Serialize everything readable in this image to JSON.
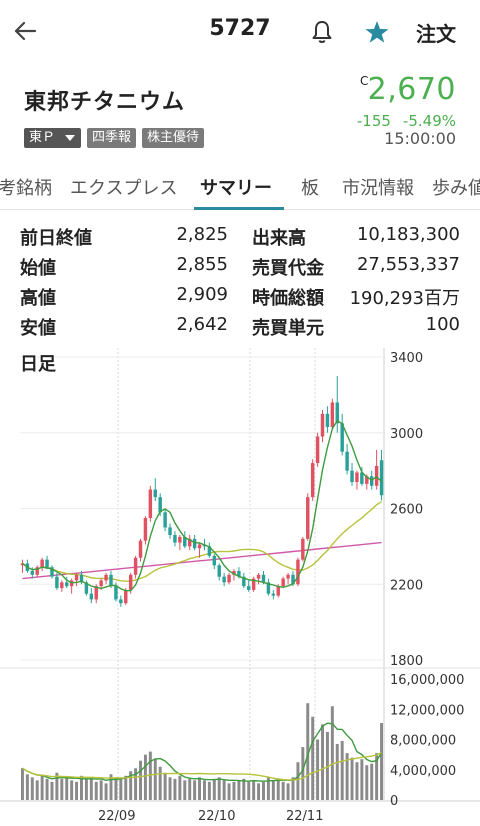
{
  "header": {
    "code": "5727",
    "order_label": "注文",
    "accent": "#2a8aa0"
  },
  "stock": {
    "name": "東邦チタニウム",
    "market": "東Ｐ",
    "tag_quarterly": "四季報",
    "tag_benefit": "株主優待",
    "price_mark": "C",
    "price": "2,670",
    "change": "-155",
    "change_pct": "-5.49%",
    "time": "15:00:00",
    "down_color": "#4caf50"
  },
  "tabs": [
    "考銘柄",
    "エクスプレス",
    "サマリー",
    "板",
    "市況情報",
    "歩み値"
  ],
  "active_tab": "サマリー",
  "stats": {
    "prev_close_label": "前日終値",
    "prev_close": "2,825",
    "open_label": "始値",
    "open": "2,855",
    "high_label": "高値",
    "high": "2,909",
    "low_label": "安値",
    "low": "2,642",
    "volume_label": "出来高",
    "volume": "10,183,300",
    "turnover_label": "売買代金",
    "turnover": "27,553,337",
    "mcap_label": "時価総額",
    "mcap": "190,293百万",
    "unit_label": "売買単元",
    "unit": "100"
  },
  "chart_data": {
    "type": "candlestick",
    "period_label": "日足",
    "price_axis": {
      "ticks": [
        "3400",
        "3000",
        "2600",
        "2200",
        "1800"
      ],
      "ylim": [
        1800,
        3400
      ]
    },
    "volume_axis": {
      "ticks": [
        "16,000,000",
        "12,000,000",
        "8,000,000",
        "4,000,000",
        "0"
      ],
      "ylim": [
        0,
        16000000
      ]
    },
    "x_ticks": [
      "22/09",
      "22/10",
      "22/11"
    ],
    "up_color": "#e05262",
    "down_color": "#2aa198",
    "ma_short_color": "#3e9b3e",
    "ma_mid_color": "#b8c23a",
    "ma_long_color": "#d05aa8",
    "candles": [
      [
        2300,
        2330,
        2260,
        2310
      ],
      [
        2310,
        2330,
        2260,
        2270
      ],
      [
        2270,
        2290,
        2230,
        2250
      ],
      [
        2250,
        2300,
        2240,
        2290
      ],
      [
        2290,
        2340,
        2270,
        2330
      ],
      [
        2330,
        2350,
        2280,
        2290
      ],
      [
        2290,
        2300,
        2230,
        2240
      ],
      [
        2240,
        2260,
        2170,
        2180
      ],
      [
        2180,
        2220,
        2160,
        2210
      ],
      [
        2210,
        2240,
        2180,
        2190
      ],
      [
        2190,
        2230,
        2150,
        2220
      ],
      [
        2220,
        2260,
        2190,
        2250
      ],
      [
        2250,
        2270,
        2200,
        2210
      ],
      [
        2210,
        2220,
        2140,
        2150
      ],
      [
        2150,
        2180,
        2100,
        2120
      ],
      [
        2120,
        2200,
        2100,
        2190
      ],
      [
        2190,
        2230,
        2170,
        2220
      ],
      [
        2220,
        2260,
        2200,
        2250
      ],
      [
        2250,
        2270,
        2180,
        2190
      ],
      [
        2190,
        2210,
        2110,
        2120
      ],
      [
        2120,
        2140,
        2080,
        2100
      ],
      [
        2100,
        2180,
        2090,
        2170
      ],
      [
        2170,
        2260,
        2150,
        2250
      ],
      [
        2250,
        2350,
        2230,
        2340
      ],
      [
        2340,
        2440,
        2320,
        2430
      ],
      [
        2430,
        2560,
        2410,
        2550
      ],
      [
        2550,
        2720,
        2530,
        2700
      ],
      [
        2700,
        2760,
        2640,
        2660
      ],
      [
        2660,
        2680,
        2560,
        2580
      ],
      [
        2580,
        2600,
        2480,
        2500
      ],
      [
        2500,
        2520,
        2440,
        2460
      ],
      [
        2460,
        2480,
        2400,
        2420
      ],
      [
        2420,
        2460,
        2380,
        2450
      ],
      [
        2450,
        2480,
        2390,
        2400
      ],
      [
        2400,
        2460,
        2380,
        2440
      ],
      [
        2440,
        2460,
        2380,
        2390
      ],
      [
        2390,
        2420,
        2340,
        2410
      ],
      [
        2410,
        2440,
        2380,
        2400
      ],
      [
        2400,
        2420,
        2340,
        2350
      ],
      [
        2350,
        2360,
        2280,
        2300
      ],
      [
        2300,
        2310,
        2220,
        2240
      ],
      [
        2240,
        2260,
        2190,
        2210
      ],
      [
        2210,
        2260,
        2200,
        2250
      ],
      [
        2250,
        2280,
        2220,
        2270
      ],
      [
        2270,
        2290,
        2230,
        2240
      ],
      [
        2240,
        2260,
        2180,
        2190
      ],
      [
        2190,
        2220,
        2160,
        2170
      ],
      [
        2170,
        2240,
        2160,
        2230
      ],
      [
        2230,
        2260,
        2200,
        2250
      ],
      [
        2250,
        2270,
        2200,
        2210
      ],
      [
        2210,
        2230,
        2140,
        2150
      ],
      [
        2150,
        2170,
        2120,
        2140
      ],
      [
        2140,
        2200,
        2130,
        2190
      ],
      [
        2190,
        2240,
        2180,
        2230
      ],
      [
        2230,
        2260,
        2200,
        2250
      ],
      [
        2250,
        2270,
        2190,
        2200
      ],
      [
        2200,
        2340,
        2190,
        2330
      ],
      [
        2330,
        2450,
        2320,
        2440
      ],
      [
        2440,
        2680,
        2430,
        2660
      ],
      [
        2660,
        2860,
        2640,
        2840
      ],
      [
        2840,
        3000,
        2820,
        2980
      ],
      [
        2980,
        3120,
        2950,
        3100
      ],
      [
        3100,
        3140,
        3000,
        3030
      ],
      [
        3030,
        3180,
        3020,
        3160
      ],
      [
        3160,
        3300,
        3000,
        3050
      ],
      [
        3050,
        3100,
        2880,
        2900
      ],
      [
        2900,
        2940,
        2780,
        2800
      ],
      [
        2800,
        2840,
        2720,
        2740
      ],
      [
        2740,
        2800,
        2700,
        2790
      ],
      [
        2790,
        2820,
        2720,
        2730
      ],
      [
        2730,
        2780,
        2700,
        2770
      ],
      [
        2770,
        2800,
        2700,
        2720
      ],
      [
        2720,
        2910,
        2700,
        2825
      ],
      [
        2855,
        2909,
        2642,
        2670
      ]
    ],
    "volumes": [
      4200000,
      3400000,
      3000000,
      2600000,
      3200000,
      2800000,
      2400000,
      3600000,
      2800000,
      3000000,
      2600000,
      2400000,
      3200000,
      2800000,
      3000000,
      2400000,
      2600000,
      2200000,
      3400000,
      3000000,
      2800000,
      3200000,
      3800000,
      4200000,
      5200000,
      6000000,
      6400000,
      5400000,
      4400000,
      3600000,
      3000000,
      2800000,
      3200000,
      2600000,
      2800000,
      2600000,
      3000000,
      2600000,
      2400000,
      2800000,
      3000000,
      2600000,
      2200000,
      2400000,
      2600000,
      2800000,
      2400000,
      2600000,
      2200000,
      2400000,
      3000000,
      2600000,
      2800000,
      2400000,
      2200000,
      3000000,
      5000000,
      7000000,
      12800000,
      11000000,
      8000000,
      10000000,
      9000000,
      12400000,
      7400000,
      7800000,
      6200000,
      5600000,
      5000000,
      5400000,
      4600000,
      4800000,
      6200000,
      10183300
    ]
  }
}
